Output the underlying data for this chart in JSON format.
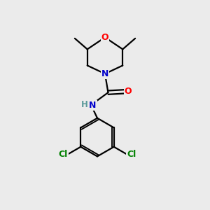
{
  "bg_color": "#ebebeb",
  "atom_colors": {
    "C": "#000000",
    "N_morph": "#0000cc",
    "N_amide": "#0000cc",
    "O": "#ff0000",
    "Cl": "#008000",
    "H": "#5a9a9a"
  },
  "bond_color": "#000000",
  "bond_width": 1.6
}
